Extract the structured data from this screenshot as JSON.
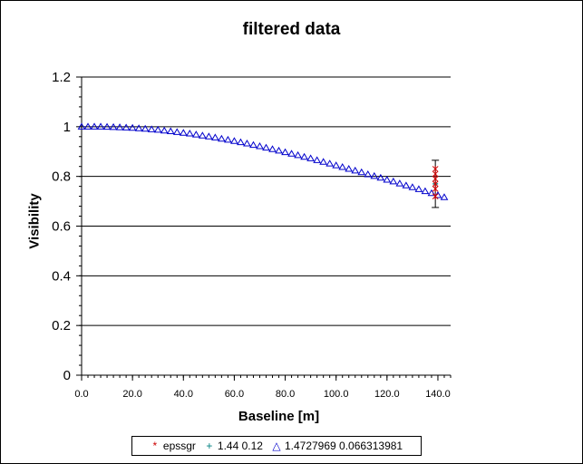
{
  "chart_data": {
    "type": "scatter",
    "title": "filtered data",
    "xlabel": "Baseline [m]",
    "ylabel": "Visibility",
    "xlim": [
      0,
      145
    ],
    "ylim": [
      0,
      1.2
    ],
    "x_tick_labels": [
      "0.0",
      "20.0",
      "40.0",
      "60.0",
      "80.0",
      "100.0",
      "120.0",
      "140.0"
    ],
    "x_tick_values": [
      0,
      20,
      40,
      60,
      80,
      100,
      120,
      140
    ],
    "y_tick_labels": [
      "0",
      "0.2",
      "0.4",
      "0.6",
      "0.8",
      "1",
      "1.2"
    ],
    "y_tick_values": [
      0,
      0.2,
      0.4,
      0.6,
      0.8,
      1.0,
      1.2
    ],
    "grid": "horizontal major",
    "legend_position": "bottom",
    "series": [
      {
        "name": "epssgr",
        "marker": "asterisk",
        "color": "#cc0000",
        "x": [
          139,
          139,
          139,
          139,
          139,
          139
        ],
        "y": [
          0.83,
          0.81,
          0.79,
          0.77,
          0.75,
          0.72
        ]
      },
      {
        "name": "1.44 0.12",
        "marker": "plus",
        "color": "#008080",
        "x": [
          139
        ],
        "y": [
          0.77
        ],
        "error": [
          0.095
        ]
      },
      {
        "name": "1.4727969 0.066313981",
        "marker": "triangle",
        "color": "#0000cc",
        "x": [
          0,
          2.5,
          5,
          7.5,
          10,
          12.5,
          15,
          17.5,
          20,
          22.5,
          25,
          27.5,
          30,
          32.5,
          35,
          37.5,
          40,
          42.5,
          45,
          47.5,
          50,
          52.5,
          55,
          57.5,
          60,
          62.5,
          65,
          67.5,
          70,
          72.5,
          75,
          77.5,
          80,
          82.5,
          85,
          87.5,
          90,
          92.5,
          95,
          97.5,
          100,
          102.5,
          105,
          107.5,
          110,
          112.5,
          115,
          117.5,
          120,
          122.5,
          125,
          127.5,
          130,
          132.5,
          135,
          137.5,
          140,
          142.5
        ],
        "y": [
          1.0,
          1.0,
          1.0,
          1.0,
          0.999,
          0.998,
          0.997,
          0.996,
          0.995,
          0.993,
          0.991,
          0.989,
          0.987,
          0.984,
          0.981,
          0.978,
          0.975,
          0.972,
          0.968,
          0.964,
          0.96,
          0.956,
          0.951,
          0.947,
          0.942,
          0.937,
          0.932,
          0.926,
          0.921,
          0.915,
          0.909,
          0.903,
          0.897,
          0.891,
          0.885,
          0.878,
          0.872,
          0.865,
          0.858,
          0.851,
          0.844,
          0.837,
          0.83,
          0.823,
          0.816,
          0.808,
          0.801,
          0.794,
          0.786,
          0.779,
          0.771,
          0.763,
          0.756,
          0.748,
          0.74,
          0.732,
          0.724,
          0.716
        ]
      }
    ]
  }
}
